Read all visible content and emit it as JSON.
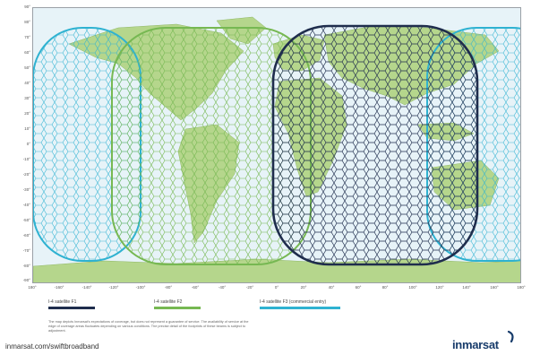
{
  "map": {
    "lat_ticks": [
      "90°",
      "80°",
      "70°",
      "60°",
      "50°",
      "40°",
      "30°",
      "20°",
      "10°",
      "0°",
      "-10°",
      "-20°",
      "-30°",
      "-40°",
      "-50°",
      "-60°",
      "-70°",
      "-80°",
      "-90°"
    ],
    "lon_ticks": [
      "180°",
      "-160°",
      "-140°",
      "-120°",
      "-100°",
      "-80°",
      "-60°",
      "-40°",
      "-20°",
      "0°",
      "20°",
      "40°",
      "60°",
      "80°",
      "100°",
      "120°",
      "140°",
      "160°",
      "180°"
    ],
    "colors": {
      "ocean": "#e7f3f8",
      "land": "#b5d68c",
      "f1": "#1f2d4d",
      "f2": "#76b852",
      "f3": "#2fb2d1"
    }
  },
  "legend": {
    "items": [
      {
        "label": "I-4 satellite F1",
        "color": "#1f2d4d",
        "icon": "legend-line-f1"
      },
      {
        "label": "I-4 satellite F2",
        "color": "#76b852",
        "icon": "legend-line-f2"
      },
      {
        "label": "I-4 satellite F3 (commercial entry)",
        "color": "#2fb2d1",
        "icon": "legend-line-f3"
      }
    ]
  },
  "disclaimer": "The map depicts Inmarsat's expectations of coverage, but does not represent a guarantee of service. The availability of service at the edge of coverage areas fluctuates depending on various conditions. The precise detail of the footprints of these beams is subject to adjustment.",
  "footer": {
    "url": "inmarsat.com/swiftbroadband"
  },
  "logo": {
    "text": "inmarsat",
    "icon": "inmarsat-swoosh-icon"
  }
}
